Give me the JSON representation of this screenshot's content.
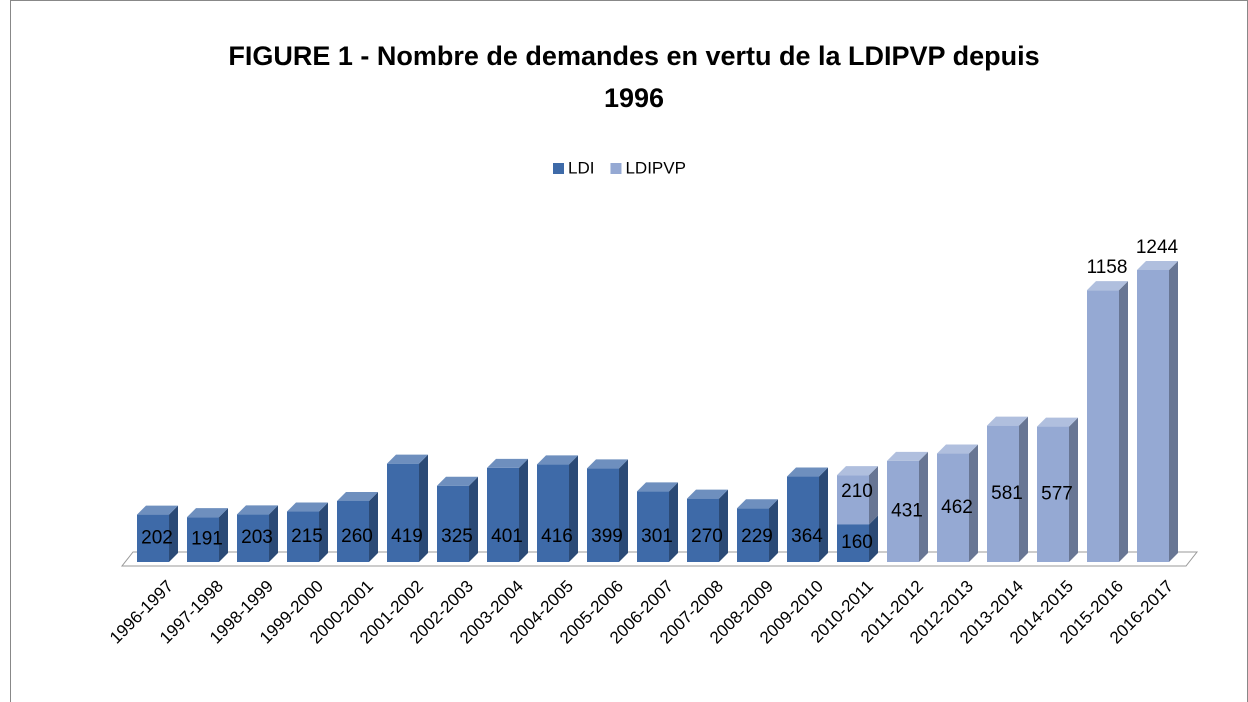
{
  "chart_data": {
    "type": "bar3d_stacked",
    "title": [
      "FIGURE 1 - Nombre de demandes en vertu de la LDIPVP depuis",
      "1996"
    ],
    "categories": [
      "1996-1997",
      "1997-1998",
      "1998-1999",
      "1999-2000",
      "2000-2001",
      "2001-2002",
      "2002-2003",
      "2003-2004",
      "2004-2005",
      "2005-2006",
      "2006-2007",
      "2007-2008",
      "2008-2009",
      "2009-2010",
      "2010-2011",
      "2011-2012",
      "2012-2013",
      "2013-2014",
      "2014-2015",
      "2015-2016",
      "2016-2017"
    ],
    "series": [
      {
        "name": "LDI",
        "color": "#3e6aa8",
        "values": [
          202,
          191,
          203,
          215,
          260,
          419,
          325,
          401,
          416,
          399,
          301,
          270,
          229,
          364,
          160,
          null,
          null,
          null,
          null,
          null,
          null
        ]
      },
      {
        "name": "LDIPVP",
        "color": "#95a9d3",
        "values": [
          null,
          null,
          null,
          null,
          null,
          null,
          null,
          null,
          null,
          null,
          null,
          null,
          null,
          null,
          210,
          431,
          462,
          581,
          577,
          1158,
          1244
        ]
      }
    ],
    "legend": "top"
  }
}
